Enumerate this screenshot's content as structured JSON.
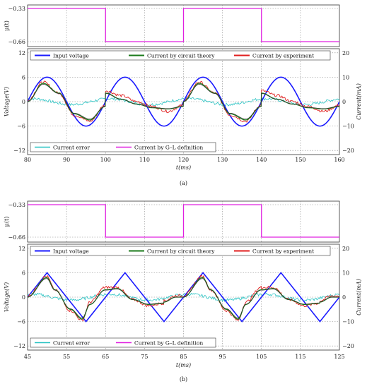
{
  "colors": {
    "input_voltage": "#1a1aff",
    "circuit_theory": "#1a7a1a",
    "experiment": "#e01e1e",
    "current_error": "#26c2c2",
    "gl_definition": "#e020e0",
    "axis_voltage": "#3333ff",
    "grid": "#888888"
  },
  "chart_data": [
    {
      "panel": "(a)",
      "type": "line",
      "waveform": "sine",
      "mu_axis": {
        "ylabel": "μ(t)",
        "ylim": [
          -0.66,
          -0.33
        ],
        "ticks": [
          "−0.33",
          "−0.66"
        ]
      },
      "mu_series": {
        "name": "Current by G–L definition",
        "x": [
          80,
          100,
          100,
          120,
          120,
          140,
          140,
          160
        ],
        "y": [
          -0.33,
          -0.33,
          -0.66,
          -0.66,
          -0.33,
          -0.33,
          -0.66,
          -0.66
        ]
      },
      "xlabel": "t(ms)",
      "xlim": [
        80,
        160
      ],
      "xticks": [
        "80",
        "90",
        "100",
        "110",
        "120",
        "130",
        "140",
        "150",
        "160"
      ],
      "ylabel_left": "Voltage(V)",
      "ylim_left": [
        -13,
        13
      ],
      "yticks_left": [
        "12",
        "6",
        "0",
        "−6",
        "−12"
      ],
      "ylabel_right": "Current(mA)",
      "ylim_right": [
        -21.67,
        21.67
      ],
      "yticks_right": [
        "20",
        "10",
        "0",
        "−10",
        "−20"
      ],
      "series": [
        {
          "name": "Input voltage",
          "amplitude_V": 6,
          "period_ms": 20,
          "peaks_at_ms": [
            85,
            105,
            125,
            145
          ]
        },
        {
          "name": "Current by circuit theory",
          "x": [
            80,
            84,
            88,
            92,
            96,
            99.9,
            100,
            104,
            108,
            112,
            116,
            119.9,
            120,
            124,
            128,
            132,
            136,
            139.9,
            140,
            144,
            148,
            152,
            156,
            160
          ],
          "y": [
            0,
            7.5,
            3.5,
            -5,
            -7.5,
            -2,
            3.5,
            1,
            -1,
            -2.5,
            -3,
            -2,
            0,
            7.5,
            3.5,
            -5,
            -7.5,
            -2,
            3.5,
            1,
            -1,
            -2.5,
            -3,
            -2
          ]
        },
        {
          "name": "Current by experiment",
          "x": [
            80,
            84,
            88,
            92,
            96,
            99.9,
            100,
            104,
            108,
            112,
            116,
            119.9,
            120,
            124,
            128,
            132,
            136,
            139.9,
            140,
            144,
            148,
            152,
            156,
            160
          ],
          "y": [
            0.5,
            8,
            3.5,
            -5.5,
            -8,
            -1.5,
            4.5,
            2.5,
            0,
            -2,
            -4,
            -1.5,
            0.5,
            8,
            3.5,
            -5.5,
            -8,
            -1.5,
            4.5,
            2.5,
            0,
            -2,
            -4,
            -1.5
          ]
        },
        {
          "name": "Current error",
          "note": "small noisy signal, amplitude ≈ 1.5 mA"
        }
      ],
      "legend_top": [
        "Input voltage",
        "Current by circuit theory",
        "Current by experiment"
      ],
      "legend_bottom": [
        "Current error",
        "Current by G–L definition"
      ],
      "caption": "(a)"
    },
    {
      "panel": "(b)",
      "type": "line",
      "waveform": "triangle",
      "mu_axis": {
        "ylabel": "μ(t)",
        "ylim": [
          -0.66,
          -0.33
        ],
        "ticks": [
          "−0.33",
          "−0.66"
        ]
      },
      "mu_series": {
        "name": "Current by G–L definition",
        "x": [
          45,
          65,
          65,
          85,
          85,
          105,
          105,
          125
        ],
        "y": [
          -0.33,
          -0.33,
          -0.66,
          -0.66,
          -0.33,
          -0.33,
          -0.66,
          -0.66
        ]
      },
      "xlabel": "t(ms)",
      "xlim": [
        45,
        125
      ],
      "xticks": [
        "45",
        "55",
        "65",
        "75",
        "85",
        "95",
        "105",
        "115",
        "125"
      ],
      "ylabel_left": "Voltage(V)",
      "ylim_left": [
        -13,
        13
      ],
      "yticks_left": [
        "12",
        "6",
        "0",
        "−6",
        "−12"
      ],
      "ylabel_right": "Current(mA)",
      "ylim_right": [
        -21.67,
        21.67
      ],
      "yticks_right": [
        "20",
        "10",
        "0",
        "−10",
        "−20"
      ],
      "series": [
        {
          "name": "Input voltage",
          "x": [
            40,
            50,
            60,
            70,
            80,
            90,
            100,
            110,
            120,
            130
          ],
          "y": [
            -6,
            6,
            -6,
            6,
            -6,
            6,
            -6,
            6,
            -6,
            6
          ]
        },
        {
          "name": "Current by circuit theory",
          "x": [
            45,
            49.9,
            52,
            56,
            59,
            61,
            64.9,
            65,
            68,
            72,
            76,
            79.9,
            80,
            83,
            84.9,
            85,
            89.9,
            92,
            96,
            99,
            101,
            104.9,
            105,
            108,
            112,
            116,
            119.9,
            120,
            123,
            125
          ],
          "y": [
            0,
            8,
            3,
            -5,
            -9,
            -3,
            3,
            3,
            3.5,
            -1,
            -3,
            -2.5,
            -2,
            0,
            0,
            0,
            8,
            3,
            -5,
            -9,
            -3,
            3,
            3,
            3.5,
            -1,
            -3,
            -2.5,
            -2,
            0,
            0
          ]
        },
        {
          "name": "Current by experiment",
          "x": [
            45,
            49.9,
            52,
            56,
            59,
            61,
            64.9,
            65,
            68,
            72,
            76,
            79.9,
            80,
            83,
            84.9,
            85,
            89.9,
            92,
            96,
            99,
            101,
            104.9,
            105,
            108,
            112,
            116,
            119.9,
            120,
            123,
            125
          ],
          "y": [
            0.5,
            8.5,
            3,
            -5.5,
            -9.5,
            -2,
            4,
            4,
            4,
            -1,
            -3.5,
            -2.5,
            -1.5,
            0.5,
            0.5,
            0.5,
            8.5,
            3,
            -5.5,
            -9.5,
            -2,
            4,
            4,
            4,
            -1,
            -3.5,
            -2.5,
            -1.5,
            0.5,
            0.5
          ]
        },
        {
          "name": "Current error",
          "note": "small noisy signal, amplitude ≈ 1.5 mA"
        }
      ],
      "legend_top": [
        "Input voltage",
        "Current by circuit theory",
        "Current by experiment"
      ],
      "legend_bottom": [
        "Current error",
        "Current by G–L definition"
      ],
      "caption": "(b)"
    }
  ]
}
